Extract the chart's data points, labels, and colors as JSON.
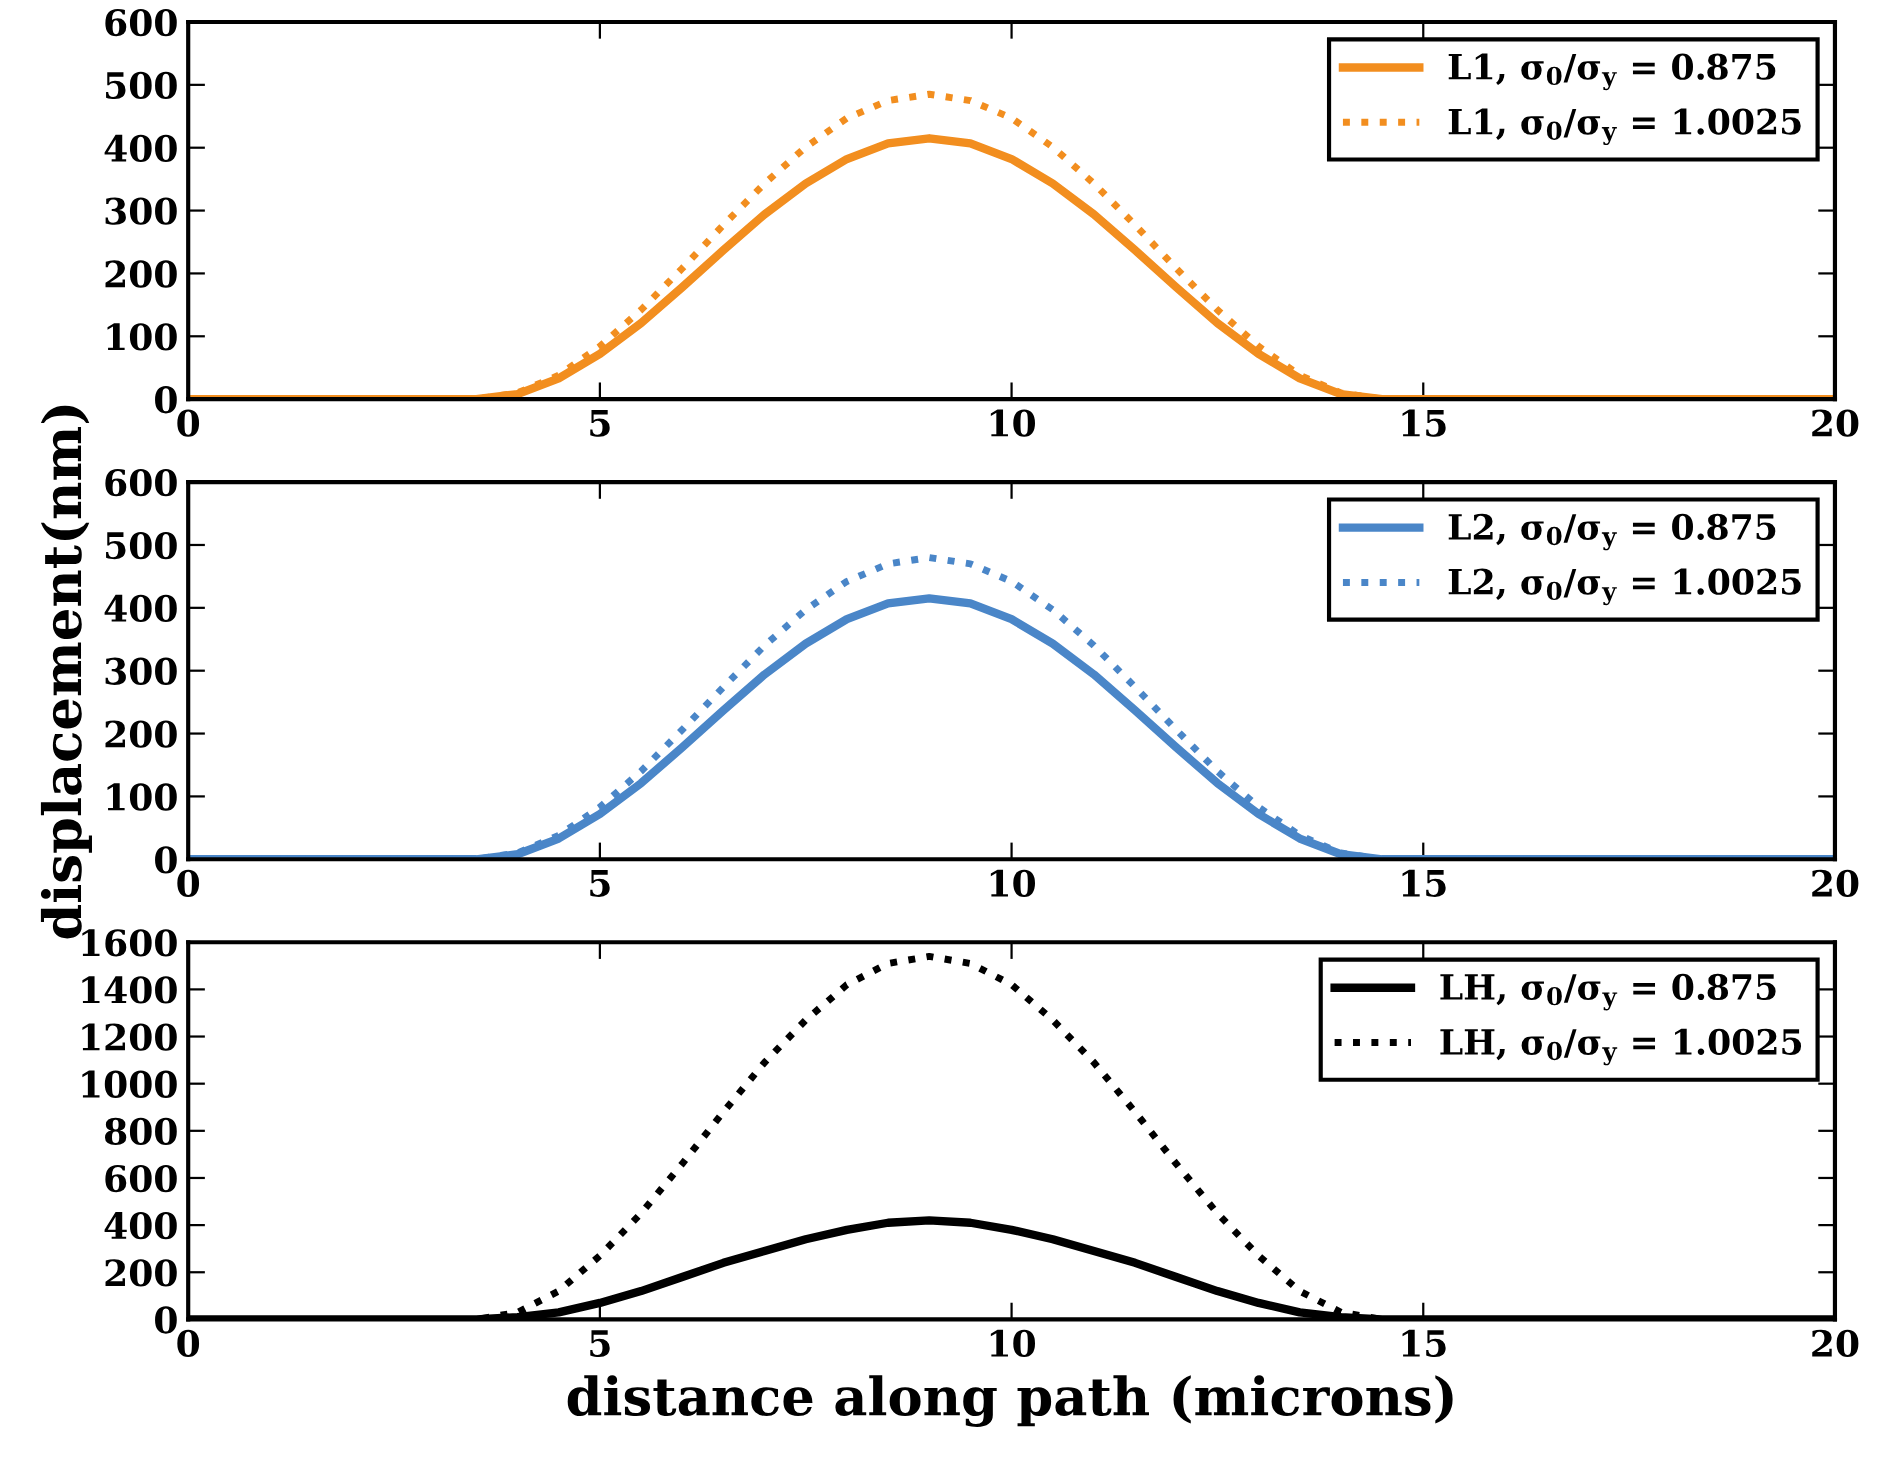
{
  "chart_data": [
    {
      "type": "line",
      "x": [
        0,
        3.5,
        4,
        4.5,
        5,
        5.5,
        6,
        6.5,
        7,
        7.5,
        8,
        8.5,
        9,
        9.5,
        10,
        10.5,
        11,
        11.5,
        12,
        12.5,
        13,
        13.5,
        14,
        14.5,
        20
      ],
      "xlim": [
        0,
        20
      ],
      "xticks": [
        0,
        5,
        10,
        15,
        20
      ],
      "ylim": [
        0,
        600
      ],
      "yticks": [
        0,
        100,
        200,
        300,
        400,
        500,
        600
      ],
      "legend": "top right",
      "grid": false,
      "series": [
        {
          "name": "L1, σ$_{0}$/σ$_{y}$ = 0.875",
          "color": "#f28e1f",
          "line_style": "solid",
          "values": [
            0,
            0,
            8,
            33,
            72,
            121,
            178,
            237,
            294,
            343,
            382,
            407,
            415,
            407,
            382,
            343,
            294,
            237,
            178,
            121,
            72,
            33,
            8,
            0,
            0
          ]
        },
        {
          "name": "L1, σ$_{0}$/σ$_{y}$ = 1.0025",
          "color": "#f28e1f",
          "line_style": "dotted",
          "values": [
            0,
            0,
            10,
            38,
            84,
            142,
            208,
            277,
            343,
            401,
            447,
            475,
            485,
            475,
            447,
            401,
            343,
            277,
            208,
            142,
            84,
            38,
            10,
            0,
            0
          ]
        }
      ]
    },
    {
      "type": "line",
      "x": [
        0,
        3.5,
        4,
        4.5,
        5,
        5.5,
        6,
        6.5,
        7,
        7.5,
        8,
        8.5,
        9,
        9.5,
        10,
        10.5,
        11,
        11.5,
        12,
        12.5,
        13,
        13.5,
        14,
        14.5,
        20
      ],
      "xlim": [
        0,
        20
      ],
      "xticks": [
        0,
        5,
        10,
        15,
        20
      ],
      "ylim": [
        0,
        600
      ],
      "yticks": [
        0,
        100,
        200,
        300,
        400,
        500,
        600
      ],
      "ylabel": "displacement(nm)",
      "legend": "top right",
      "grid": false,
      "series": [
        {
          "name": "L2, σ$_{0}$/σ$_{y}$ = 0.875",
          "color": "#4a86c8",
          "line_style": "solid",
          "values": [
            0,
            0,
            8,
            33,
            72,
            121,
            178,
            237,
            294,
            343,
            382,
            407,
            415,
            407,
            382,
            343,
            294,
            237,
            178,
            121,
            72,
            33,
            8,
            0,
            0
          ]
        },
        {
          "name": "L2, σ$_{0}$/σ$_{y}$ = 1.0025",
          "color": "#4a86c8",
          "line_style": "dotted",
          "values": [
            0,
            0,
            10,
            38,
            83,
            140,
            206,
            274,
            340,
            397,
            442,
            470,
            480,
            470,
            442,
            397,
            340,
            274,
            206,
            140,
            83,
            38,
            10,
            0,
            0
          ]
        }
      ]
    },
    {
      "type": "line",
      "x": [
        0,
        3.5,
        4,
        4.5,
        5,
        5.5,
        6,
        6.5,
        7,
        7.5,
        8,
        8.5,
        9,
        9.5,
        10,
        10.5,
        11,
        11.5,
        12,
        12.5,
        13,
        13.5,
        14,
        14.5,
        20
      ],
      "xlim": [
        0,
        20
      ],
      "xticks": [
        0,
        5,
        10,
        15,
        20
      ],
      "ylim": [
        0,
        1600
      ],
      "yticks": [
        0,
        200,
        400,
        600,
        800,
        1000,
        1200,
        1400,
        1600
      ],
      "xlabel": "distance along path (microns)",
      "legend": "top right",
      "grid": false,
      "series": [
        {
          "name": "LH, σ$_{0}$/σ$_{y}$ = 0.875",
          "color": "#000000",
          "line_style": "solid",
          "values": [
            0,
            0,
            10,
            30,
            70,
            120,
            180,
            240,
            290,
            340,
            380,
            410,
            420,
            410,
            380,
            340,
            290,
            240,
            180,
            120,
            70,
            30,
            10,
            0,
            0
          ]
        },
        {
          "name": "LH, σ$_{0}$/σ$_{y}$ = 1.0025",
          "color": "#000000",
          "line_style": "dotted",
          "values": [
            0,
            0,
            30,
            120,
            270,
            450,
            660,
            880,
            1090,
            1270,
            1420,
            1510,
            1540,
            1510,
            1420,
            1270,
            1090,
            880,
            660,
            450,
            270,
            120,
            30,
            0,
            0
          ]
        }
      ]
    }
  ]
}
